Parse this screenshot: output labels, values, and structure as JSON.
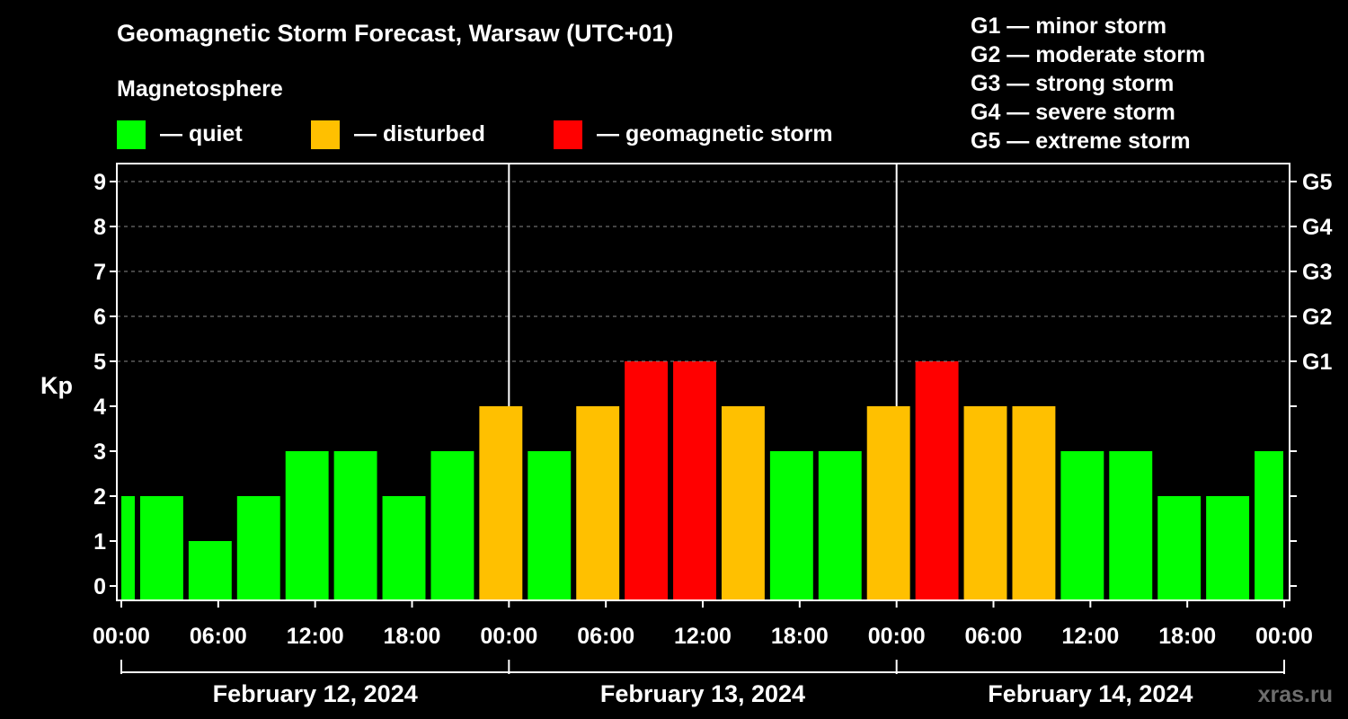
{
  "title": "Geomagnetic Storm Forecast, Warsaw (UTC+01)",
  "legend": {
    "title": "Magnetosphere",
    "items": [
      {
        "label": "— quiet",
        "color": "#00ff00"
      },
      {
        "label": "— disturbed",
        "color": "#ffc000"
      },
      {
        "label": "— geomagnetic storm",
        "color": "#ff0000"
      }
    ]
  },
  "g_scale": [
    "G1 — minor storm",
    "G2 — moderate storm",
    "G3 — strong storm",
    "G4 — severe storm",
    "G5 — extreme storm"
  ],
  "watermark": "xras.ru",
  "chart_data": {
    "type": "bar",
    "title": "Geomagnetic Storm Forecast, Warsaw (UTC+01)",
    "ylabel": "Kp",
    "ylim": [
      0,
      9
    ],
    "yticks": [
      "0",
      "1",
      "2",
      "3",
      "4",
      "5",
      "6",
      "7",
      "8",
      "9"
    ],
    "right_ticks": [
      {
        "kp": 5,
        "label": "G1"
      },
      {
        "kp": 6,
        "label": "G2"
      },
      {
        "kp": 7,
        "label": "G3"
      },
      {
        "kp": 8,
        "label": "G4"
      },
      {
        "kp": 9,
        "label": "G5"
      }
    ],
    "xticks": [
      "00:00",
      "06:00",
      "12:00",
      "18:00",
      "00:00",
      "06:00",
      "12:00",
      "18:00",
      "00:00",
      "06:00",
      "12:00",
      "18:00",
      "00:00"
    ],
    "days": [
      "February 12, 2024",
      "February 13, 2024",
      "February 14, 2024"
    ],
    "interval_hours": 3,
    "first_bar_start_hour": -2,
    "total_hours": 72,
    "colors": {
      "quiet": "#00ff00",
      "disturbed": "#ffc000",
      "storm": "#ff0000"
    },
    "values": [
      2,
      2,
      1,
      2,
      3,
      3,
      2,
      3,
      4,
      3,
      4,
      5,
      5,
      4,
      3,
      3,
      4,
      5,
      4,
      4,
      3,
      3,
      2,
      2,
      3
    ],
    "levels": [
      "quiet",
      "quiet",
      "quiet",
      "quiet",
      "quiet",
      "quiet",
      "quiet",
      "quiet",
      "disturbed",
      "quiet",
      "disturbed",
      "storm",
      "storm",
      "disturbed",
      "quiet",
      "quiet",
      "disturbed",
      "storm",
      "disturbed",
      "disturbed",
      "quiet",
      "quiet",
      "quiet",
      "quiet",
      "quiet"
    ],
    "grid": true
  }
}
